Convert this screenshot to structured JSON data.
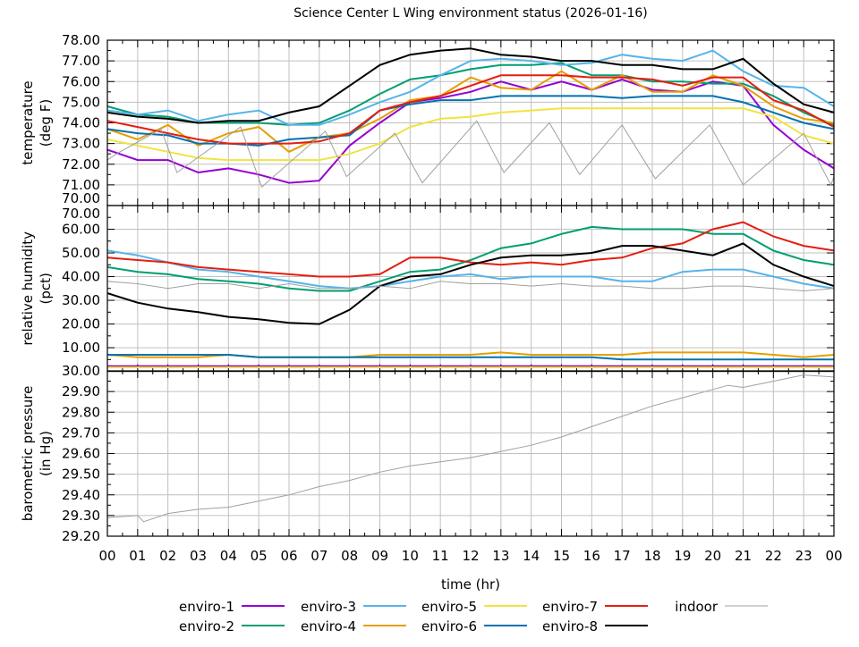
{
  "chart_data": [
    {
      "type": "line",
      "title": "Science Center L Wing environment status (2026-01-16)",
      "ylabel": [
        "temperature",
        "(deg F)"
      ],
      "ylim": [
        70,
        78
      ],
      "yticks": [
        "78.00",
        "77.00",
        "76.00",
        "75.00",
        "74.00",
        "73.00",
        "72.00",
        "71.00",
        "70.00"
      ],
      "grid": true,
      "x": [
        0,
        1,
        2,
        3,
        4,
        5,
        6,
        7,
        8,
        9,
        10,
        11,
        12,
        13,
        14,
        15,
        16,
        17,
        18,
        19,
        20,
        21,
        22,
        23,
        24
      ],
      "series": [
        {
          "name": "enviro-1",
          "values": [
            72.7,
            72.2,
            72.2,
            71.6,
            71.8,
            71.5,
            71.1,
            71.2,
            72.9,
            74.0,
            75.0,
            75.2,
            75.5,
            76.0,
            75.6,
            76.0,
            75.6,
            76.1,
            75.6,
            75.5,
            76.0,
            75.8,
            73.9,
            72.7,
            71.8
          ]
        },
        {
          "name": "enviro-2",
          "values": [
            74.8,
            74.4,
            74.3,
            74.0,
            74.0,
            74.0,
            73.9,
            74.0,
            74.6,
            75.4,
            76.1,
            76.3,
            76.6,
            76.8,
            76.8,
            76.9,
            76.3,
            76.3,
            76.0,
            76.0,
            75.9,
            75.9,
            75.3,
            74.5,
            73.9
          ]
        },
        {
          "name": "enviro-3",
          "values": [
            74.6,
            74.4,
            74.6,
            74.1,
            74.4,
            74.6,
            73.9,
            73.9,
            74.4,
            75.0,
            75.5,
            76.3,
            77.0,
            77.1,
            77.0,
            76.8,
            76.9,
            77.3,
            77.1,
            77.0,
            77.5,
            76.5,
            75.8,
            75.7,
            74.8
          ]
        },
        {
          "name": "enviro-4",
          "values": [
            73.7,
            73.2,
            73.9,
            72.9,
            73.5,
            73.8,
            72.6,
            73.3,
            73.5,
            74.2,
            75.1,
            75.3,
            76.2,
            75.7,
            75.6,
            76.5,
            75.6,
            76.3,
            75.5,
            75.5,
            76.3,
            75.8,
            74.8,
            74.2,
            74.0
          ]
        },
        {
          "name": "enviro-5",
          "values": [
            73.2,
            72.9,
            72.6,
            72.3,
            72.2,
            72.2,
            72.2,
            72.2,
            72.5,
            73.0,
            73.8,
            74.2,
            74.3,
            74.5,
            74.6,
            74.7,
            74.7,
            74.7,
            74.7,
            74.7,
            74.7,
            74.7,
            74.3,
            73.4,
            73.0
          ]
        },
        {
          "name": "enviro-6",
          "values": [
            73.7,
            73.5,
            73.4,
            73.0,
            73.0,
            72.9,
            73.2,
            73.3,
            73.4,
            74.6,
            74.9,
            75.1,
            75.1,
            75.3,
            75.3,
            75.3,
            75.3,
            75.2,
            75.3,
            75.3,
            75.3,
            75.0,
            74.5,
            74.0,
            73.7
          ]
        },
        {
          "name": "enviro-7",
          "values": [
            74.1,
            73.8,
            73.5,
            73.2,
            73.0,
            73.0,
            73.0,
            73.1,
            73.5,
            74.6,
            75.0,
            75.3,
            75.8,
            76.3,
            76.3,
            76.3,
            76.2,
            76.2,
            76.1,
            75.8,
            76.2,
            76.2,
            75.1,
            74.6,
            73.8
          ]
        },
        {
          "name": "enviro-8",
          "values": [
            74.5,
            74.3,
            74.2,
            74.0,
            74.1,
            74.1,
            74.5,
            74.8,
            75.8,
            76.8,
            77.3,
            77.5,
            77.6,
            77.3,
            77.2,
            77.0,
            77.0,
            76.8,
            76.8,
            76.6,
            76.6,
            77.1,
            75.9,
            74.9,
            74.5
          ]
        },
        {
          "name": "indoor",
          "points": [
            [
              0,
              72.2
            ],
            [
              0.3,
              72.5
            ],
            [
              1.77,
              73.7
            ],
            [
              2.3,
              71.6
            ],
            [
              4.4,
              73.8
            ],
            [
              5.1,
              70.9
            ],
            [
              7.2,
              73.6
            ],
            [
              7.9,
              71.4
            ],
            [
              9.5,
              73.5
            ],
            [
              10.4,
              71.1
            ],
            [
              12.2,
              74.1
            ],
            [
              13.1,
              71.6
            ],
            [
              14.6,
              74.0
            ],
            [
              15.6,
              71.5
            ],
            [
              17.0,
              73.9
            ],
            [
              18.1,
              71.3
            ],
            [
              19.9,
              73.9
            ],
            [
              21.0,
              71.0
            ],
            [
              23.0,
              73.5
            ],
            [
              23.9,
              71.0
            ],
            [
              24,
              71.4
            ]
          ]
        }
      ]
    },
    {
      "type": "line",
      "ylabel": [
        "relative humidity",
        "(pct)"
      ],
      "ylim": [
        0,
        70
      ],
      "yticks": [
        "70.00",
        "60.00",
        "50.00",
        "40.00",
        "30.00",
        "20.00",
        "10.00"
      ],
      "grid": true,
      "x": [
        0,
        1,
        2,
        3,
        4,
        5,
        6,
        7,
        8,
        9,
        10,
        11,
        12,
        13,
        14,
        15,
        16,
        17,
        18,
        19,
        20,
        21,
        22,
        23,
        24
      ],
      "series": [
        {
          "name": "enviro-1",
          "values": [
            2.2,
            2.2,
            2.2,
            2.2,
            2.2,
            2.2,
            2.2,
            2.2,
            2.2,
            2.2,
            2.2,
            2.2,
            2.2,
            2.2,
            2.2,
            2.2,
            2.2,
            2.2,
            2.2,
            2.2,
            2.2,
            2.2,
            2.2,
            2.2,
            2.2
          ]
        },
        {
          "name": "enviro-2",
          "values": [
            44,
            42,
            41,
            39,
            38,
            37,
            35,
            34,
            34,
            38,
            42,
            43,
            47,
            52,
            54,
            58,
            61,
            60,
            60,
            60,
            58,
            58,
            51,
            47,
            45
          ]
        },
        {
          "name": "enviro-3",
          "values": [
            51,
            49,
            46,
            43,
            42,
            40,
            38,
            36,
            35,
            36,
            38,
            40,
            41,
            39,
            40,
            40,
            40,
            38,
            38,
            42,
            43,
            43,
            40,
            37,
            35
          ]
        },
        {
          "name": "enviro-4",
          "values": [
            7,
            6,
            6,
            6,
            7,
            6,
            6,
            6,
            6,
            7,
            7,
            7,
            7,
            8,
            7,
            7,
            7,
            7,
            8,
            8,
            8,
            8,
            7,
            6,
            7
          ]
        },
        {
          "name": "enviro-5",
          "values": [
            1.7,
            1.7,
            1.7,
            1.7,
            1.7,
            1.7,
            1.7,
            1.7,
            1.7,
            1.7,
            1.7,
            1.7,
            1.7,
            1.7,
            1.7,
            1.7,
            1.7,
            1.7,
            1.7,
            1.7,
            1.7,
            1.7,
            1.7,
            1.7,
            1.7
          ]
        },
        {
          "name": "enviro-6",
          "values": [
            7,
            7,
            7,
            7,
            7,
            6,
            6,
            6,
            6,
            6,
            6,
            6,
            6,
            6,
            6,
            6,
            6,
            5,
            5,
            5,
            5,
            5,
            5,
            5,
            5
          ]
        },
        {
          "name": "enviro-7",
          "values": [
            48,
            47,
            46,
            44,
            43,
            42,
            41,
            40,
            40,
            41,
            48,
            48,
            46,
            45,
            46,
            45,
            47,
            48,
            52,
            54,
            60,
            63,
            57,
            53,
            51
          ]
        },
        {
          "name": "enviro-8",
          "values": [
            33,
            29,
            26.5,
            25,
            23,
            22,
            20.5,
            20,
            26,
            36,
            40,
            41,
            45,
            48,
            49,
            49,
            50,
            53,
            53,
            51,
            49,
            54,
            45,
            40,
            36
          ]
        },
        {
          "name": "indoor",
          "values": [
            38,
            37,
            35,
            37,
            37,
            35,
            37,
            35,
            35,
            36,
            35,
            38,
            37,
            37,
            36,
            37,
            36,
            36,
            35,
            35,
            36,
            36,
            35,
            34,
            35
          ]
        }
      ]
    },
    {
      "type": "line",
      "ylabel": [
        "barometric pressure",
        "(in Hg)"
      ],
      "xlabel": "time (hr)",
      "ylim": [
        29.2,
        30.0
      ],
      "yticks": [
        "30.00",
        "29.90",
        "29.80",
        "29.70",
        "29.60",
        "29.50",
        "29.40",
        "29.30",
        "29.20"
      ],
      "xticks": [
        "00",
        "01",
        "02",
        "03",
        "04",
        "05",
        "06",
        "07",
        "08",
        "09",
        "10",
        "11",
        "12",
        "13",
        "14",
        "15",
        "16",
        "17",
        "18",
        "19",
        "20",
        "21",
        "22",
        "23",
        "00"
      ],
      "grid": true,
      "series": [
        {
          "name": "indoor",
          "points": [
            [
              0,
              29.29
            ],
            [
              1,
              29.3
            ],
            [
              1.2,
              29.27
            ],
            [
              2,
              29.31
            ],
            [
              3,
              29.33
            ],
            [
              4,
              29.34
            ],
            [
              5,
              29.37
            ],
            [
              6,
              29.4
            ],
            [
              7,
              29.44
            ],
            [
              8,
              29.47
            ],
            [
              9,
              29.51
            ],
            [
              10,
              29.54
            ],
            [
              11,
              29.56
            ],
            [
              12,
              29.58
            ],
            [
              13,
              29.61
            ],
            [
              14,
              29.64
            ],
            [
              15,
              29.68
            ],
            [
              16,
              29.73
            ],
            [
              17,
              29.78
            ],
            [
              18,
              29.83
            ],
            [
              19,
              29.87
            ],
            [
              20,
              29.91
            ],
            [
              20.5,
              29.93
            ],
            [
              21,
              29.92
            ],
            [
              22,
              29.95
            ],
            [
              23,
              29.98
            ],
            [
              24,
              29.97
            ]
          ]
        }
      ]
    }
  ],
  "legend": [
    {
      "name": "enviro-1",
      "color": "#9400d3"
    },
    {
      "name": "enviro-2",
      "color": "#009e73"
    },
    {
      "name": "enviro-3",
      "color": "#56b4e9"
    },
    {
      "name": "enviro-4",
      "color": "#e69f00"
    },
    {
      "name": "enviro-5",
      "color": "#f0e442"
    },
    {
      "name": "enviro-6",
      "color": "#0072b2"
    },
    {
      "name": "enviro-7",
      "color": "#e51e10"
    },
    {
      "name": "enviro-8",
      "color": "#000000"
    },
    {
      "name": "indoor",
      "color": "#a0a0a0"
    }
  ],
  "legend_placement": "bottom"
}
